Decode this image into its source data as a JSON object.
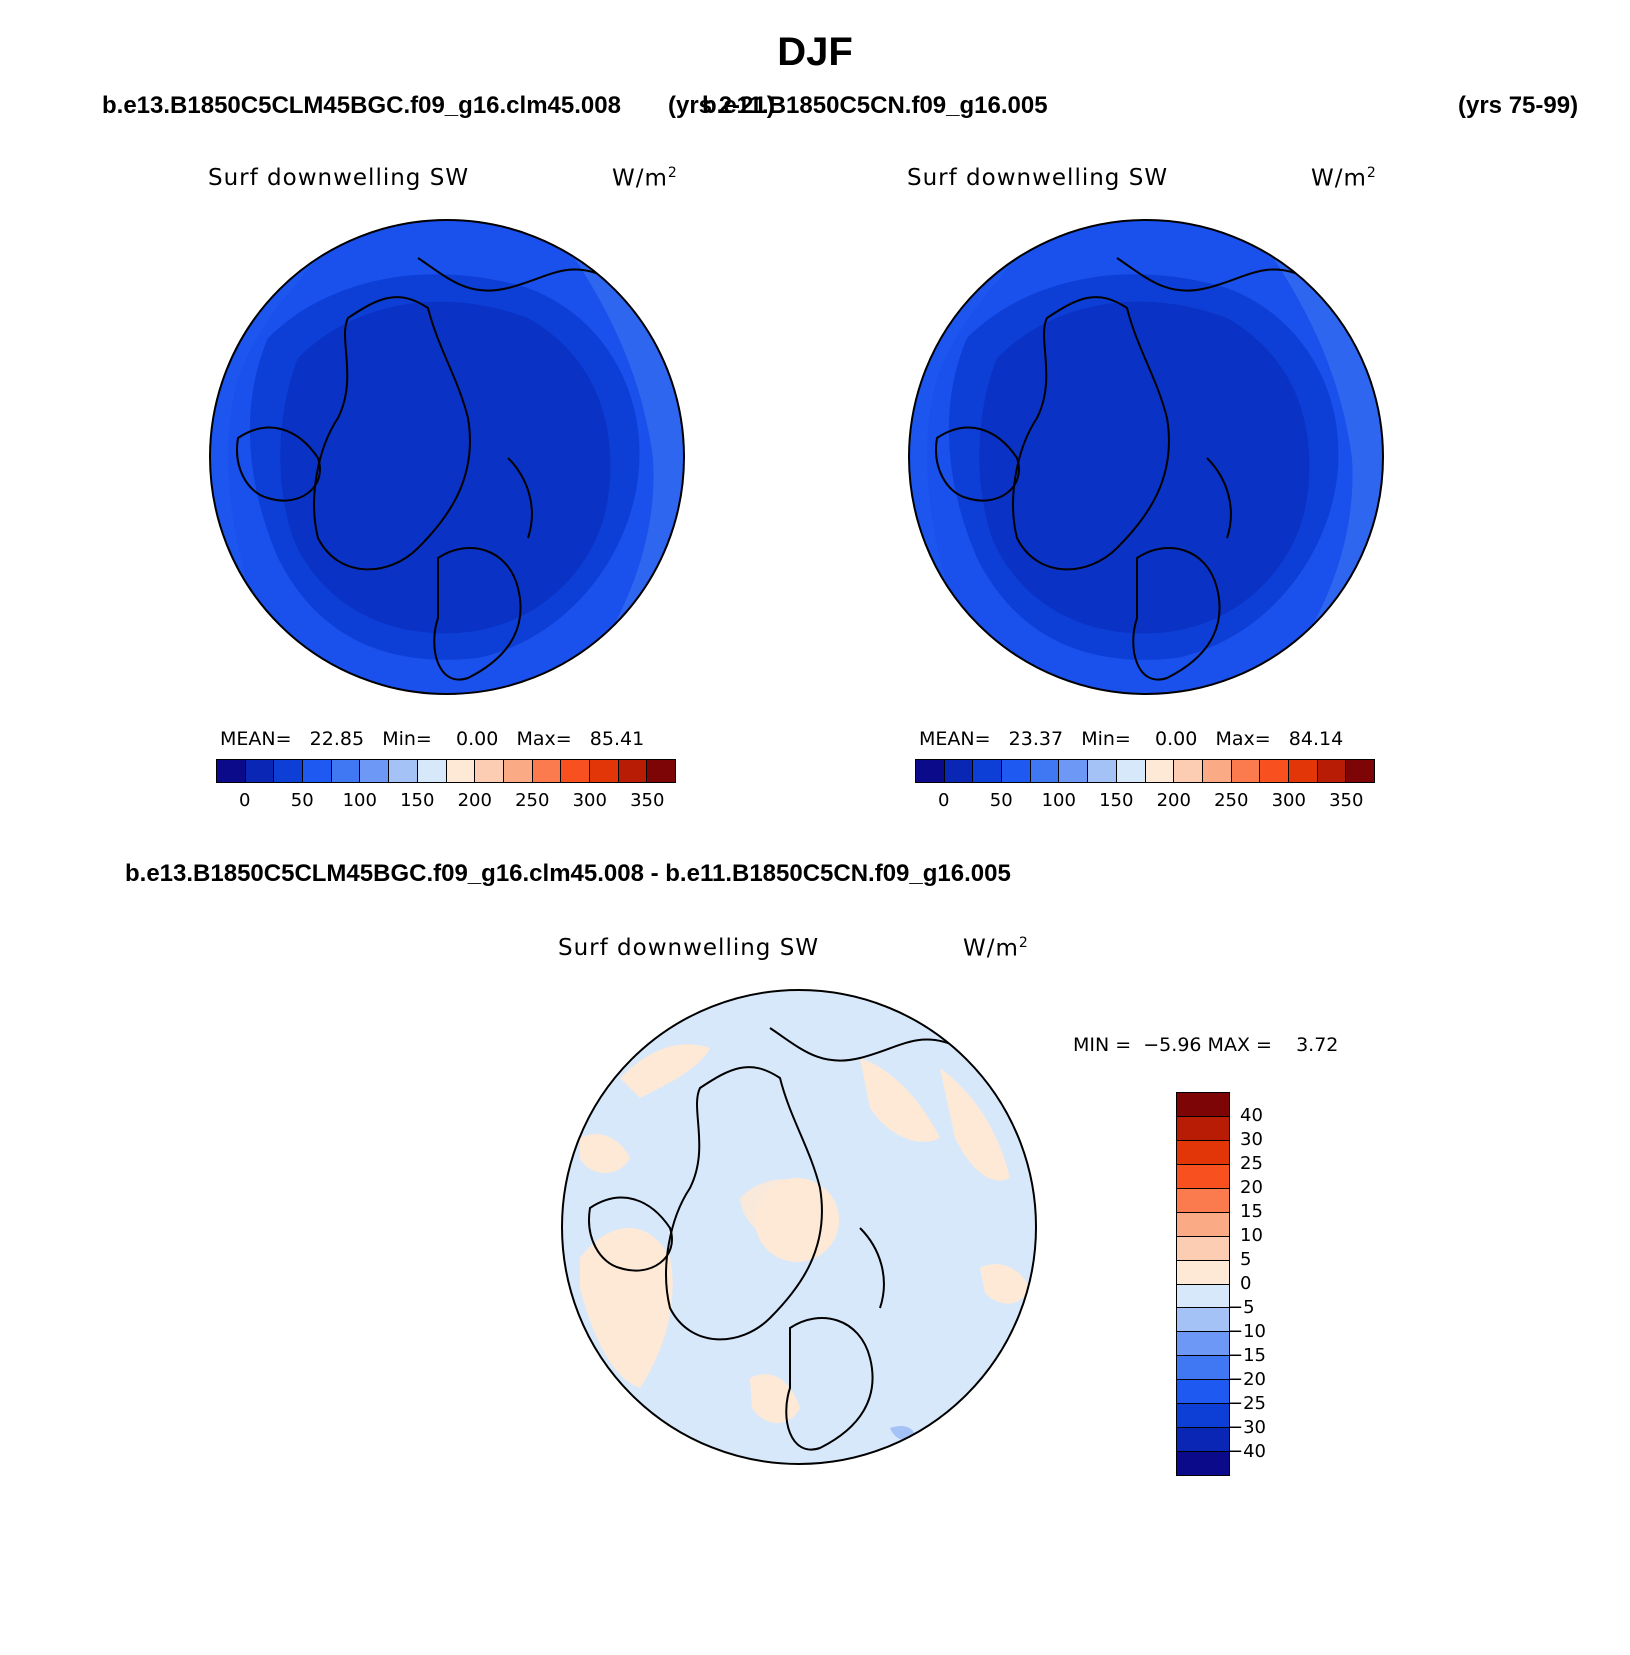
{
  "title": "DJF",
  "panels": [
    {
      "case": "b.e13.B1850C5CLM45BGC.f09_g16.clm45.008",
      "years": "(yrs 2-21)",
      "variable": "Surf downwelling SW",
      "units": "W/m",
      "units_sup": "2",
      "stats": {
        "mean_label": "MEAN=",
        "mean": "22.85",
        "min_label": "Min=",
        "min": "0.00",
        "max_label": "Max=",
        "max": "85.41"
      }
    },
    {
      "case": "b.e11.B1850C5CN.f09_g16.005",
      "years": "(yrs 75-99)",
      "variable": "Surf downwelling SW",
      "units": "W/m",
      "units_sup": "2",
      "stats": {
        "mean_label": "MEAN=",
        "mean": "23.37",
        "min_label": "Min=",
        "min": "0.00",
        "max_label": "Max=",
        "max": "84.14"
      }
    }
  ],
  "diff": {
    "title": "b.e13.B1850C5CLM45BGC.f09_g16.clm45.008 - b.e11.B1850C5CN.f09_g16.005",
    "variable": "Surf downwelling SW",
    "units": "W/m",
    "units_sup": "2",
    "min_label": "MIN =",
    "min": "−5.96",
    "max_label": "MAX =",
    "max": "3.72"
  },
  "colorbar_main": {
    "colors": [
      "#0a0a8a",
      "#0a26b4",
      "#0d3fd6",
      "#1e5af2",
      "#3f78f2",
      "#6e98f5",
      "#a5c2f7",
      "#d8e8fb",
      "#fde9d6",
      "#fcccb3",
      "#fbaa86",
      "#fb7a4e",
      "#f8501f",
      "#e23508",
      "#b81c05",
      "#7d0505"
    ],
    "ticks": [
      "0",
      "50",
      "100",
      "150",
      "200",
      "250",
      "300",
      "350"
    ]
  },
  "colorbar_diff": {
    "colors": [
      "#7d0505",
      "#b81c05",
      "#e23508",
      "#f8501f",
      "#fb7a4e",
      "#fbaa86",
      "#fcccb3",
      "#fde9d6",
      "#d8e8fb",
      "#a5c2f7",
      "#6e98f5",
      "#3f78f2",
      "#1e5af2",
      "#0d3fd6",
      "#0a26b4",
      "#0a0a8a"
    ],
    "ticks": [
      "40",
      "30",
      "25",
      "20",
      "15",
      "10",
      "5",
      "0",
      "−5",
      "−10",
      "−15",
      "−20",
      "−25",
      "−30",
      "−40"
    ]
  }
}
